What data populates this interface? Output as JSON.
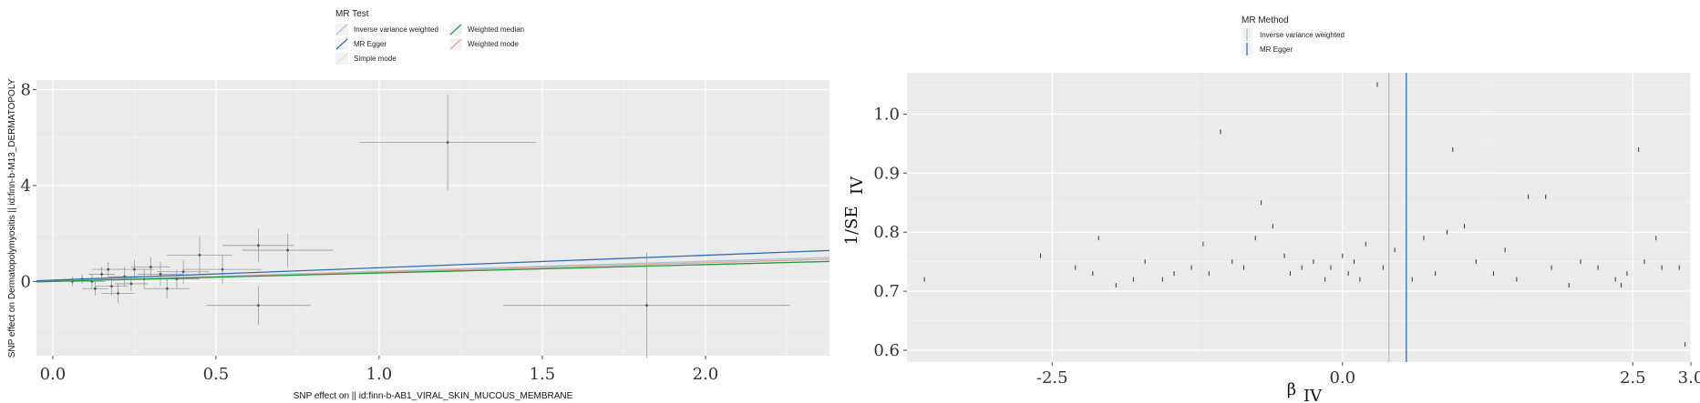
{
  "chart_data": [
    {
      "type": "scatter",
      "legend_title": "MR Test",
      "legend": [
        {
          "name": "Inverse variance weighted",
          "color": "#a9c3d6"
        },
        {
          "name": "Weighted median",
          "color": "#1a9a3a"
        },
        {
          "name": "MR Egger",
          "color": "#2f6db3"
        },
        {
          "name": "Weighted mode",
          "color": "#e8a09a"
        },
        {
          "name": "Simple mode",
          "color": "#d9e6c8"
        }
      ],
      "xlabel": "SNP effect on  || id:finn-b-AB1_VIRAL_SKIN_MUCOUS_MEMBRANE",
      "ylabel": "SNP effect on Dermatopolymyositis || id:finn-b-M13_DERMATOPOLY",
      "x_ticks": [
        "0.0",
        "0.5",
        "1.0",
        "1.5",
        "2.0"
      ],
      "y_ticks": [
        "0",
        "4",
        "8"
      ],
      "xlim": [
        -0.05,
        2.38
      ],
      "ylim": [
        -3.1,
        8.4
      ],
      "lines": [
        {
          "name": "MR Egger",
          "intercept": 0.05,
          "slope": 0.52
        },
        {
          "name": "Inverse variance weighted",
          "intercept": 0.0,
          "slope": 0.42
        },
        {
          "name": "Weighted mode",
          "intercept": 0.0,
          "slope": 0.39
        },
        {
          "name": "Weighted median",
          "intercept": 0.0,
          "slope": 0.35
        }
      ],
      "points": [
        {
          "x": 1.21,
          "y": 5.8,
          "xerr": 0.27,
          "yerr": 2.0
        },
        {
          "x": 1.82,
          "y": -1.0,
          "xerr": 0.44,
          "yerr": 2.2
        },
        {
          "x": 0.63,
          "y": -1.0,
          "xerr": 0.16,
          "yerr": 0.8
        },
        {
          "x": 0.63,
          "y": 1.5,
          "xerr": 0.11,
          "yerr": 0.7
        },
        {
          "x": 0.45,
          "y": 1.1,
          "xerr": 0.1,
          "yerr": 0.8
        },
        {
          "x": 0.72,
          "y": 1.3,
          "xerr": 0.14,
          "yerr": 0.7
        },
        {
          "x": 0.52,
          "y": 0.5,
          "xerr": 0.12,
          "yerr": 0.6
        },
        {
          "x": 0.4,
          "y": 0.4,
          "xerr": 0.08,
          "yerr": 0.5
        },
        {
          "x": 0.33,
          "y": 0.3,
          "xerr": 0.07,
          "yerr": 0.5
        },
        {
          "x": 0.28,
          "y": 0.1,
          "xerr": 0.06,
          "yerr": 0.4
        },
        {
          "x": 0.22,
          "y": 0.2,
          "xerr": 0.05,
          "yerr": 0.4
        },
        {
          "x": 0.18,
          "y": -0.2,
          "xerr": 0.05,
          "yerr": 0.4
        },
        {
          "x": 0.15,
          "y": 0.3,
          "xerr": 0.04,
          "yerr": 0.3
        },
        {
          "x": 0.12,
          "y": 0.0,
          "xerr": 0.04,
          "yerr": 0.3
        },
        {
          "x": 0.09,
          "y": 0.1,
          "xerr": 0.03,
          "yerr": 0.2
        },
        {
          "x": 0.2,
          "y": -0.5,
          "xerr": 0.05,
          "yerr": 0.4
        },
        {
          "x": 0.25,
          "y": 0.5,
          "xerr": 0.06,
          "yerr": 0.4
        },
        {
          "x": 0.35,
          "y": -0.3,
          "xerr": 0.07,
          "yerr": 0.4
        },
        {
          "x": 0.06,
          "y": 0.0,
          "xerr": 0.02,
          "yerr": 0.2
        },
        {
          "x": 0.17,
          "y": 0.5,
          "xerr": 0.05,
          "yerr": 0.3
        },
        {
          "x": 0.3,
          "y": 0.6,
          "xerr": 0.06,
          "yerr": 0.4
        },
        {
          "x": 0.24,
          "y": -0.1,
          "xerr": 0.05,
          "yerr": 0.3
        },
        {
          "x": 0.13,
          "y": -0.3,
          "xerr": 0.04,
          "yerr": 0.3
        },
        {
          "x": 0.38,
          "y": 0.1,
          "xerr": 0.07,
          "yerr": 0.4
        }
      ]
    },
    {
      "type": "scatter",
      "legend_title": "MR Method",
      "legend": [
        {
          "name": "Inverse variance weighted",
          "color": "#a9c3d6"
        },
        {
          "name": "MR Egger",
          "color": "#2f6db3"
        }
      ],
      "xlabel": "β",
      "xlabel_sub": "IV",
      "ylabel": "1/SE",
      "ylabel_sub": "IV",
      "x_ticks": [
        "-2.5",
        "0.0",
        "2.5",
        "3.0"
      ],
      "x_tick_values": [
        -2.5,
        0.0,
        2.5,
        3.0
      ],
      "y_ticks": [
        "0.6",
        "0.7",
        "0.8",
        "0.9",
        "1.0"
      ],
      "xlim": [
        -3.75,
        3.0
      ],
      "ylim": [
        0.58,
        1.07
      ],
      "vlines": [
        {
          "name": "Inverse variance weighted",
          "x": 0.4
        },
        {
          "name": "MR Egger",
          "x": 0.55
        }
      ],
      "points": [
        {
          "x": -3.6,
          "y": 0.72
        },
        {
          "x": -2.6,
          "y": 0.76
        },
        {
          "x": -2.3,
          "y": 0.74
        },
        {
          "x": -2.1,
          "y": 0.79
        },
        {
          "x": -2.15,
          "y": 0.73
        },
        {
          "x": -1.95,
          "y": 0.71
        },
        {
          "x": -1.8,
          "y": 0.72
        },
        {
          "x": -1.7,
          "y": 0.75
        },
        {
          "x": -1.55,
          "y": 0.72
        },
        {
          "x": -1.45,
          "y": 0.73
        },
        {
          "x": -1.3,
          "y": 0.74
        },
        {
          "x": -1.2,
          "y": 0.78
        },
        {
          "x": -1.05,
          "y": 0.97
        },
        {
          "x": -1.15,
          "y": 0.73
        },
        {
          "x": -0.95,
          "y": 0.75
        },
        {
          "x": -0.85,
          "y": 0.74
        },
        {
          "x": -0.7,
          "y": 0.85
        },
        {
          "x": -0.75,
          "y": 0.79
        },
        {
          "x": -0.6,
          "y": 0.81
        },
        {
          "x": -0.5,
          "y": 0.76
        },
        {
          "x": -0.45,
          "y": 0.73
        },
        {
          "x": -0.35,
          "y": 0.74
        },
        {
          "x": -0.25,
          "y": 0.75
        },
        {
          "x": -0.15,
          "y": 0.72
        },
        {
          "x": -0.1,
          "y": 0.74
        },
        {
          "x": 0.0,
          "y": 0.76
        },
        {
          "x": 0.05,
          "y": 0.73
        },
        {
          "x": 0.1,
          "y": 0.75
        },
        {
          "x": 0.15,
          "y": 0.72
        },
        {
          "x": 0.2,
          "y": 0.78
        },
        {
          "x": 0.3,
          "y": 1.05
        },
        {
          "x": 0.35,
          "y": 0.74
        },
        {
          "x": 0.45,
          "y": 0.77
        },
        {
          "x": 0.6,
          "y": 0.72
        },
        {
          "x": 0.7,
          "y": 0.79
        },
        {
          "x": 0.8,
          "y": 0.73
        },
        {
          "x": 0.9,
          "y": 0.8
        },
        {
          "x": 0.95,
          "y": 0.94
        },
        {
          "x": 1.05,
          "y": 0.81
        },
        {
          "x": 1.15,
          "y": 0.75
        },
        {
          "x": 1.3,
          "y": 0.73
        },
        {
          "x": 1.4,
          "y": 0.77
        },
        {
          "x": 1.5,
          "y": 0.72
        },
        {
          "x": 1.6,
          "y": 0.86
        },
        {
          "x": 1.75,
          "y": 0.86
        },
        {
          "x": 1.8,
          "y": 0.74
        },
        {
          "x": 1.95,
          "y": 0.71
        },
        {
          "x": 2.05,
          "y": 0.75
        },
        {
          "x": 2.2,
          "y": 0.74
        },
        {
          "x": 2.35,
          "y": 0.72
        },
        {
          "x": 2.4,
          "y": 0.71
        },
        {
          "x": 2.45,
          "y": 0.73
        },
        {
          "x": 2.55,
          "y": 0.94
        },
        {
          "x": 2.6,
          "y": 0.75
        },
        {
          "x": 2.7,
          "y": 0.79
        },
        {
          "x": 2.75,
          "y": 0.74
        },
        {
          "x": 2.9,
          "y": 0.74
        },
        {
          "x": 2.95,
          "y": 0.61
        }
      ]
    }
  ]
}
